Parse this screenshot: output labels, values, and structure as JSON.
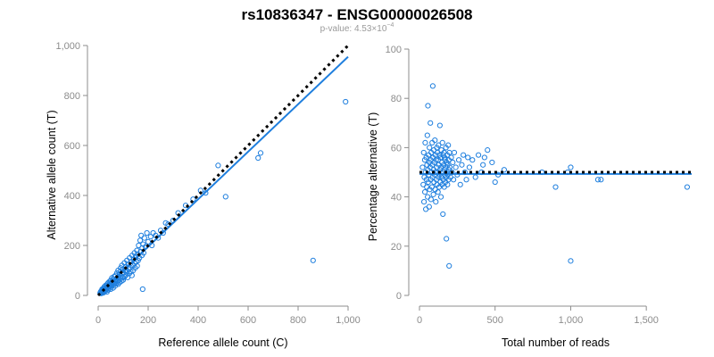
{
  "colors": {
    "points": "#1f7fde",
    "fit_line": "#1f7fde",
    "reference_line": "#000000",
    "axis": "#8c8c8c"
  },
  "header": {
    "title": "rs10836347 - ENSG00000026508",
    "pvalue_prefix": "p-value: 4.53×10",
    "pvalue_exponent": "−4"
  },
  "chart_data": [
    {
      "type": "scatter",
      "name": "allele-counts",
      "title": "",
      "xlabel": "Reference allele count (C)",
      "ylabel": "Alternative allele count (T)",
      "xlim": [
        0,
        1000
      ],
      "ylim": [
        0,
        1000
      ],
      "x_ticks": [
        0,
        200,
        400,
        600,
        800,
        1000
      ],
      "x_tick_labels": [
        "0",
        "200",
        "400",
        "600",
        "800",
        "1,000"
      ],
      "y_ticks": [
        0,
        200,
        400,
        600,
        800,
        1000
      ],
      "y_tick_labels": [
        "0",
        "200",
        "400",
        "600",
        "800",
        "1,000"
      ],
      "grid": false,
      "points": [
        [
          8,
          10
        ],
        [
          10,
          15
        ],
        [
          12,
          8
        ],
        [
          14,
          20
        ],
        [
          15,
          12
        ],
        [
          16,
          25
        ],
        [
          18,
          18
        ],
        [
          20,
          10
        ],
        [
          20,
          22
        ],
        [
          22,
          30
        ],
        [
          24,
          15
        ],
        [
          25,
          35
        ],
        [
          26,
          20
        ],
        [
          28,
          28
        ],
        [
          30,
          18
        ],
        [
          30,
          40
        ],
        [
          32,
          25
        ],
        [
          34,
          35
        ],
        [
          35,
          14
        ],
        [
          36,
          45
        ],
        [
          38,
          30
        ],
        [
          40,
          22
        ],
        [
          40,
          50
        ],
        [
          42,
          38
        ],
        [
          44,
          28
        ],
        [
          45,
          55
        ],
        [
          46,
          42
        ],
        [
          48,
          35
        ],
        [
          50,
          25
        ],
        [
          50,
          60
        ],
        [
          52,
          48
        ],
        [
          54,
          38
        ],
        [
          55,
          70
        ],
        [
          56,
          55
        ],
        [
          58,
          42
        ],
        [
          60,
          30
        ],
        [
          60,
          65
        ],
        [
          62,
          52
        ],
        [
          64,
          75
        ],
        [
          65,
          45
        ],
        [
          66,
          60
        ],
        [
          68,
          38
        ],
        [
          70,
          80
        ],
        [
          70,
          55
        ],
        [
          72,
          65
        ],
        [
          74,
          48
        ],
        [
          75,
          90
        ],
        [
          76,
          70
        ],
        [
          78,
          58
        ],
        [
          80,
          45
        ],
        [
          80,
          100
        ],
        [
          82,
          72
        ],
        [
          84,
          62
        ],
        [
          85,
          85
        ],
        [
          86,
          52
        ],
        [
          88,
          95
        ],
        [
          90,
          68
        ],
        [
          90,
          110
        ],
        [
          92,
          78
        ],
        [
          94,
          58
        ],
        [
          95,
          120
        ],
        [
          96,
          88
        ],
        [
          98,
          70
        ],
        [
          100,
          105
        ],
        [
          100,
          62
        ],
        [
          102,
          90
        ],
        [
          105,
          130
        ],
        [
          106,
          75
        ],
        [
          108,
          98
        ],
        [
          110,
          115
        ],
        [
          112,
          82
        ],
        [
          115,
          140
        ],
        [
          116,
          95
        ],
        [
          118,
          72
        ],
        [
          120,
          125
        ],
        [
          122,
          105
        ],
        [
          125,
          88
        ],
        [
          126,
          150
        ],
        [
          128,
          112
        ],
        [
          130,
          95
        ],
        [
          132,
          135
        ],
        [
          135,
          80
        ],
        [
          136,
          160
        ],
        [
          138,
          120
        ],
        [
          140,
          100
        ],
        [
          142,
          145
        ],
        [
          145,
          170
        ],
        [
          146,
          128
        ],
        [
          148,
          110
        ],
        [
          150,
          155
        ],
        [
          152,
          135
        ],
        [
          155,
          180
        ],
        [
          156,
          118
        ],
        [
          158,
          165
        ],
        [
          160,
          140
        ],
        [
          162,
          200
        ],
        [
          165,
          150
        ],
        [
          168,
          220
        ],
        [
          170,
          175
        ],
        [
          172,
          240
        ],
        [
          175,
          160
        ],
        [
          176,
          190
        ],
        [
          178,
          25
        ],
        [
          180,
          205
        ],
        [
          182,
          170
        ],
        [
          185,
          230
        ],
        [
          190,
          195
        ],
        [
          195,
          250
        ],
        [
          200,
          215
        ],
        [
          210,
          235
        ],
        [
          215,
          200
        ],
        [
          220,
          250
        ],
        [
          230,
          240
        ],
        [
          240,
          230
        ],
        [
          250,
          260
        ],
        [
          260,
          250
        ],
        [
          270,
          290
        ],
        [
          280,
          285
        ],
        [
          300,
          300
        ],
        [
          320,
          330
        ],
        [
          350,
          360
        ],
        [
          380,
          385
        ],
        [
          410,
          420
        ],
        [
          430,
          410
        ],
        [
          480,
          520
        ],
        [
          510,
          395
        ],
        [
          640,
          550
        ],
        [
          650,
          570
        ],
        [
          860,
          140
        ],
        [
          990,
          775
        ]
      ],
      "fit_line": [
        [
          0,
          5
        ],
        [
          1000,
          955
        ]
      ],
      "reference_line": [
        [
          0,
          0
        ],
        [
          1000,
          1000
        ]
      ]
    },
    {
      "type": "scatter",
      "name": "percentage-alternative",
      "title": "",
      "xlabel": "Total number of reads",
      "ylabel": "Percentage alternative (T)",
      "xlim": [
        0,
        1800
      ],
      "ylim": [
        0,
        100
      ],
      "x_ticks": [
        0,
        500,
        1000,
        1500
      ],
      "x_tick_labels": [
        "0",
        "500",
        "1,000",
        "1,500"
      ],
      "y_ticks": [
        0,
        20,
        40,
        60,
        80,
        100
      ],
      "y_tick_labels": [
        "0",
        "20",
        "40",
        "60",
        "80",
        "100"
      ],
      "grid": false,
      "points": [
        [
          20,
          52
        ],
        [
          25,
          45
        ],
        [
          28,
          58
        ],
        [
          30,
          38
        ],
        [
          32,
          48
        ],
        [
          35,
          55
        ],
        [
          36,
          42
        ],
        [
          38,
          62
        ],
        [
          40,
          50
        ],
        [
          42,
          35
        ],
        [
          45,
          56
        ],
        [
          46,
          47
        ],
        [
          48,
          44
        ],
        [
          50,
          53
        ],
        [
          52,
          65
        ],
        [
          54,
          40
        ],
        [
          55,
          51
        ],
        [
          56,
          77
        ],
        [
          58,
          46
        ],
        [
          60,
          57
        ],
        [
          62,
          49
        ],
        [
          64,
          36
        ],
        [
          65,
          54
        ],
        [
          66,
          60
        ],
        [
          68,
          43
        ],
        [
          70,
          52
        ],
        [
          72,
          70
        ],
        [
          74,
          47
        ],
        [
          75,
          55
        ],
        [
          76,
          39
        ],
        [
          78,
          58
        ],
        [
          80,
          50
        ],
        [
          82,
          44
        ],
        [
          84,
          62
        ],
        [
          85,
          53
        ],
        [
          86,
          48
        ],
        [
          88,
          85
        ],
        [
          90,
          56
        ],
        [
          92,
          41
        ],
        [
          94,
          51
        ],
        [
          95,
          59
        ],
        [
          96,
          46
        ],
        [
          98,
          54
        ],
        [
          100,
          49
        ],
        [
          102,
          63
        ],
        [
          104,
          43
        ],
        [
          105,
          57
        ],
        [
          106,
          50
        ],
        [
          108,
          38
        ],
        [
          110,
          55
        ],
        [
          112,
          47
        ],
        [
          114,
          52
        ],
        [
          115,
          60
        ],
        [
          116,
          45
        ],
        [
          118,
          58
        ],
        [
          120,
          50
        ],
        [
          122,
          42
        ],
        [
          124,
          55
        ],
        [
          125,
          48
        ],
        [
          126,
          61
        ],
        [
          128,
          53
        ],
        [
          130,
          44
        ],
        [
          132,
          57
        ],
        [
          134,
          49
        ],
        [
          135,
          69
        ],
        [
          136,
          51
        ],
        [
          138,
          46
        ],
        [
          140,
          56
        ],
        [
          142,
          40
        ],
        [
          144,
          52
        ],
        [
          145,
          59
        ],
        [
          146,
          48
        ],
        [
          148,
          54
        ],
        [
          150,
          45
        ],
        [
          152,
          62
        ],
        [
          154,
          50
        ],
        [
          155,
          33
        ],
        [
          156,
          57
        ],
        [
          158,
          47
        ],
        [
          160,
          53
        ],
        [
          162,
          58
        ],
        [
          164,
          44
        ],
        [
          165,
          51
        ],
        [
          166,
          56
        ],
        [
          168,
          49
        ],
        [
          170,
          55
        ],
        [
          172,
          46
        ],
        [
          174,
          52
        ],
        [
          175,
          60
        ],
        [
          176,
          48
        ],
        [
          178,
          23
        ],
        [
          180,
          54
        ],
        [
          182,
          50
        ],
        [
          184,
          57
        ],
        [
          185,
          45
        ],
        [
          186,
          53
        ],
        [
          188,
          49
        ],
        [
          190,
          61
        ],
        [
          192,
          47
        ],
        [
          194,
          55
        ],
        [
          195,
          51
        ],
        [
          196,
          12
        ],
        [
          198,
          58
        ],
        [
          200,
          52
        ],
        [
          205,
          48
        ],
        [
          210,
          56
        ],
        [
          215,
          50
        ],
        [
          220,
          54
        ],
        [
          225,
          47
        ],
        [
          230,
          58
        ],
        [
          240,
          52
        ],
        [
          250,
          49
        ],
        [
          260,
          55
        ],
        [
          270,
          45
        ],
        [
          280,
          53
        ],
        [
          290,
          57
        ],
        [
          300,
          50
        ],
        [
          310,
          47
        ],
        [
          320,
          56
        ],
        [
          330,
          52
        ],
        [
          350,
          55
        ],
        [
          370,
          48
        ],
        [
          390,
          57
        ],
        [
          410,
          50
        ],
        [
          420,
          53
        ],
        [
          430,
          56
        ],
        [
          450,
          59
        ],
        [
          480,
          54
        ],
        [
          500,
          46
        ],
        [
          520,
          49
        ],
        [
          560,
          51
        ],
        [
          810,
          50
        ],
        [
          900,
          44
        ],
        [
          980,
          50
        ],
        [
          1000,
          52
        ],
        [
          1000,
          14
        ],
        [
          1180,
          47
        ],
        [
          1200,
          47
        ],
        [
          1770,
          44
        ]
      ],
      "fit_line": [
        [
          0,
          49.3
        ],
        [
          1800,
          49.3
        ]
      ],
      "reference_line": [
        [
          0,
          50
        ],
        [
          1800,
          50
        ]
      ]
    }
  ]
}
